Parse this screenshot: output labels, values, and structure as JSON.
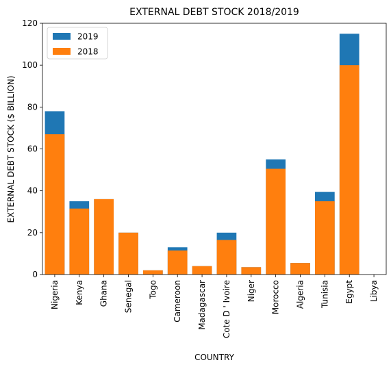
{
  "chart_data": {
    "type": "bar",
    "title": "EXTERNAL DEBT STOCK 2018/2019",
    "xlabel": "COUNTRY",
    "ylabel": "EXTERNAL DEBT STOCK ($ BILLION)",
    "ylim": [
      0,
      120
    ],
    "yticks": [
      0,
      20,
      40,
      60,
      80,
      100,
      120
    ],
    "categories": [
      "Nigeria",
      "Kenya",
      "Ghana",
      "Senegal",
      "Togo",
      "Cameroon",
      "Madagascar",
      "Cote D ' Ivoire",
      "Niger",
      "Morocco",
      "Algeria",
      "Tunisia",
      "Egypt",
      "Libya"
    ],
    "series": [
      {
        "name": "2019",
        "color": "#1f77b4",
        "values": [
          78,
          35,
          36,
          20,
          2,
          13,
          4,
          20,
          3.5,
          55,
          5.5,
          39.5,
          115,
          0
        ]
      },
      {
        "name": "2018",
        "color": "#ff7f0e",
        "values": [
          67,
          31.5,
          36,
          20,
          2,
          11.5,
          4,
          16.5,
          3.5,
          50.5,
          5.5,
          35,
          100,
          0
        ]
      }
    ],
    "grid": false,
    "legend_position": "upper-left"
  }
}
